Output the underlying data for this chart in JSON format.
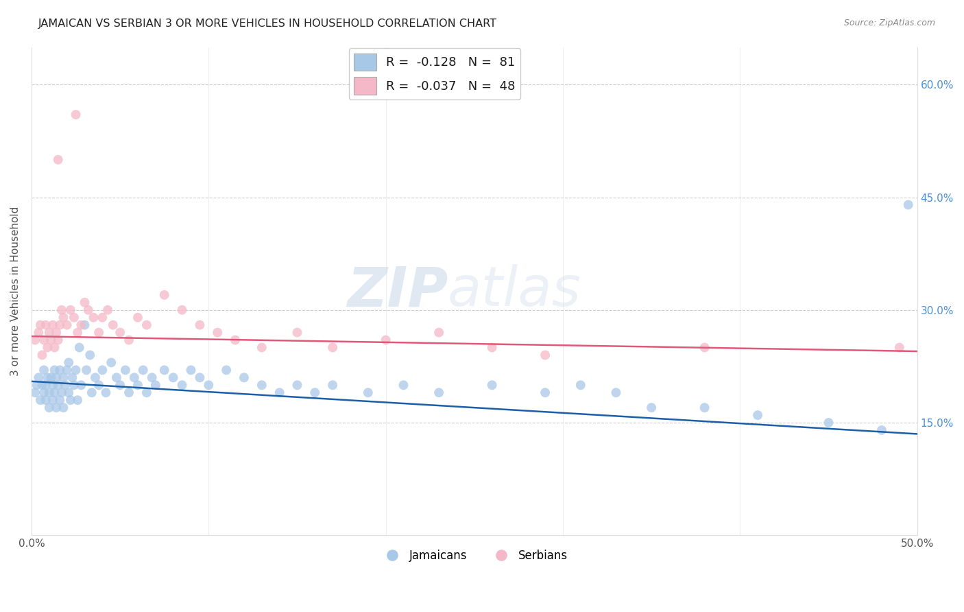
{
  "title": "JAMAICAN VS SERBIAN 3 OR MORE VEHICLES IN HOUSEHOLD CORRELATION CHART",
  "source": "Source: ZipAtlas.com",
  "ylabel": "3 or more Vehicles in Household",
  "xmin": 0.0,
  "xmax": 0.5,
  "ymin": 0.0,
  "ymax": 0.65,
  "yticks": [
    0.15,
    0.3,
    0.45,
    0.6
  ],
  "ytick_labels": [
    "15.0%",
    "30.0%",
    "45.0%",
    "60.0%"
  ],
  "xticks": [
    0.0,
    0.1,
    0.2,
    0.3,
    0.4,
    0.5
  ],
  "xtick_labels": [
    "0.0%",
    "",
    "",
    "",
    "",
    "50.0%"
  ],
  "legend_blue_r": "-0.128",
  "legend_blue_n": "81",
  "legend_pink_r": "-0.037",
  "legend_pink_n": "48",
  "blue_color": "#a8c8e8",
  "pink_color": "#f4b8c8",
  "trend_blue": "#1a5fa8",
  "trend_pink": "#e05878",
  "watermark_zip": "ZIP",
  "watermark_atlas": "atlas",
  "jamaicans_x": [
    0.002,
    0.003,
    0.004,
    0.005,
    0.006,
    0.007,
    0.007,
    0.008,
    0.008,
    0.009,
    0.01,
    0.01,
    0.011,
    0.012,
    0.012,
    0.013,
    0.013,
    0.014,
    0.014,
    0.015,
    0.016,
    0.016,
    0.017,
    0.018,
    0.018,
    0.019,
    0.02,
    0.021,
    0.021,
    0.022,
    0.023,
    0.024,
    0.025,
    0.026,
    0.027,
    0.028,
    0.03,
    0.031,
    0.033,
    0.034,
    0.036,
    0.038,
    0.04,
    0.042,
    0.045,
    0.048,
    0.05,
    0.053,
    0.055,
    0.058,
    0.06,
    0.063,
    0.065,
    0.068,
    0.07,
    0.075,
    0.08,
    0.085,
    0.09,
    0.095,
    0.1,
    0.11,
    0.12,
    0.13,
    0.14,
    0.15,
    0.16,
    0.17,
    0.19,
    0.21,
    0.23,
    0.26,
    0.29,
    0.31,
    0.33,
    0.35,
    0.38,
    0.41,
    0.45,
    0.48,
    0.495
  ],
  "jamaicans_y": [
    0.19,
    0.2,
    0.21,
    0.18,
    0.2,
    0.19,
    0.22,
    0.18,
    0.2,
    0.21,
    0.17,
    0.19,
    0.21,
    0.18,
    0.2,
    0.19,
    0.22,
    0.17,
    0.21,
    0.2,
    0.18,
    0.22,
    0.19,
    0.21,
    0.17,
    0.2,
    0.22,
    0.19,
    0.23,
    0.18,
    0.21,
    0.2,
    0.22,
    0.18,
    0.25,
    0.2,
    0.28,
    0.22,
    0.24,
    0.19,
    0.21,
    0.2,
    0.22,
    0.19,
    0.23,
    0.21,
    0.2,
    0.22,
    0.19,
    0.21,
    0.2,
    0.22,
    0.19,
    0.21,
    0.2,
    0.22,
    0.21,
    0.2,
    0.22,
    0.21,
    0.2,
    0.22,
    0.21,
    0.2,
    0.19,
    0.2,
    0.19,
    0.2,
    0.19,
    0.2,
    0.19,
    0.2,
    0.19,
    0.2,
    0.19,
    0.17,
    0.17,
    0.16,
    0.15,
    0.14,
    0.44
  ],
  "serbians_x": [
    0.002,
    0.004,
    0.005,
    0.006,
    0.007,
    0.008,
    0.009,
    0.01,
    0.011,
    0.012,
    0.013,
    0.014,
    0.015,
    0.016,
    0.017,
    0.018,
    0.02,
    0.022,
    0.024,
    0.026,
    0.028,
    0.03,
    0.032,
    0.035,
    0.038,
    0.04,
    0.043,
    0.046,
    0.05,
    0.055,
    0.06,
    0.065,
    0.075,
    0.085,
    0.095,
    0.105,
    0.115,
    0.13,
    0.15,
    0.17,
    0.2,
    0.23,
    0.26,
    0.29,
    0.38,
    0.49,
    0.015,
    0.025
  ],
  "serbians_y": [
    0.26,
    0.27,
    0.28,
    0.24,
    0.26,
    0.28,
    0.25,
    0.27,
    0.26,
    0.28,
    0.25,
    0.27,
    0.26,
    0.28,
    0.3,
    0.29,
    0.28,
    0.3,
    0.29,
    0.27,
    0.28,
    0.31,
    0.3,
    0.29,
    0.27,
    0.29,
    0.3,
    0.28,
    0.27,
    0.26,
    0.29,
    0.28,
    0.32,
    0.3,
    0.28,
    0.27,
    0.26,
    0.25,
    0.27,
    0.25,
    0.26,
    0.27,
    0.25,
    0.24,
    0.25,
    0.25,
    0.5,
    0.56
  ]
}
